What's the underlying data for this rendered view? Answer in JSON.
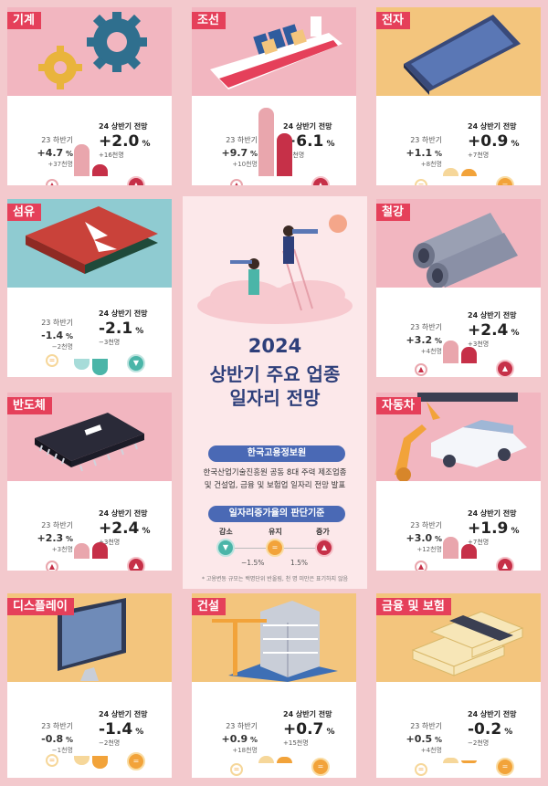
{
  "labels": {
    "h23": "23 하반기",
    "h24": "24 상반기 전망"
  },
  "industries": [
    {
      "name": "기계",
      "h23_pct": "+4.7",
      "h23_sub": "+37천명",
      "h24_pct": "+2.0",
      "h24_sub": "+16천명",
      "h23_status": "increase",
      "h24_status": "increase"
    },
    {
      "name": "조선",
      "h23_pct": "+9.7",
      "h23_sub": "+10천명",
      "h24_pct": "+6.1",
      "h24_sub": "+6천명",
      "h23_status": "increase",
      "h24_status": "increase"
    },
    {
      "name": "전자",
      "h23_pct": "+1.1",
      "h23_sub": "+8천명",
      "h24_pct": "+0.9",
      "h24_sub": "+7천명",
      "h23_status": "maintain",
      "h24_status": "maintain"
    },
    {
      "name": "섬유",
      "h23_pct": "-1.4",
      "h23_sub": "−2천명",
      "h24_pct": "-2.1",
      "h24_sub": "−3천명",
      "h23_status": "maintain",
      "h24_status": "decrease"
    },
    {
      "name": "철강",
      "h23_pct": "+3.2",
      "h23_sub": "+4천명",
      "h24_pct": "+2.4",
      "h24_sub": "+3천명",
      "h23_status": "increase",
      "h24_status": "increase"
    },
    {
      "name": "반도체",
      "h23_pct": "+2.3",
      "h23_sub": "+3천명",
      "h24_pct": "+2.4",
      "h24_sub": "+3천명",
      "h23_status": "increase",
      "h24_status": "increase"
    },
    {
      "name": "자동차",
      "h23_pct": "+3.0",
      "h23_sub": "+12천명",
      "h24_pct": "+1.9",
      "h24_sub": "+7천명",
      "h23_status": "increase",
      "h24_status": "increase"
    },
    {
      "name": "디스플레이",
      "h23_pct": "-0.8",
      "h23_sub": "−1천명",
      "h24_pct": "-1.4",
      "h24_sub": "−2천명",
      "h23_status": "maintain",
      "h24_status": "maintain"
    },
    {
      "name": "건설",
      "h23_pct": "+0.9",
      "h23_sub": "+18천명",
      "h24_pct": "+0.7",
      "h24_sub": "+15천명",
      "h23_status": "maintain",
      "h24_status": "maintain"
    },
    {
      "name": "금융 및 보험",
      "h23_pct": "+0.5",
      "h23_sub": "+4천명",
      "h24_pct": "-0.2",
      "h24_sub": "−2천명",
      "h23_status": "maintain",
      "h24_status": "maintain"
    }
  ],
  "center": {
    "year": "2024",
    "title_line1": "상반기 주요 업종",
    "title_line2": "일자리 전망",
    "org": "한국고용정보원",
    "desc_line1": "한국산업기술진흥원 공동 8대 주력 제조업종",
    "desc_line2": "및 건설업, 금융 및 보험업 일자리 전망 발표",
    "criteria_title": "일자리증가율의 판단기준",
    "legend_decrease": "감소",
    "legend_maintain": "유지",
    "legend_increase": "증가",
    "threshold_low": "−1.5%",
    "threshold_high": "1.5%",
    "footnote": "* 고용변동 규모는 백명단위 반올림, 천 명 미만은 표기하지 않음"
  },
  "colors": {
    "increase": "#c63048",
    "maintain": "#f2a33a",
    "decrease": "#4bb5a8",
    "tag": "#e5405a",
    "title": "#2e3f7a"
  }
}
